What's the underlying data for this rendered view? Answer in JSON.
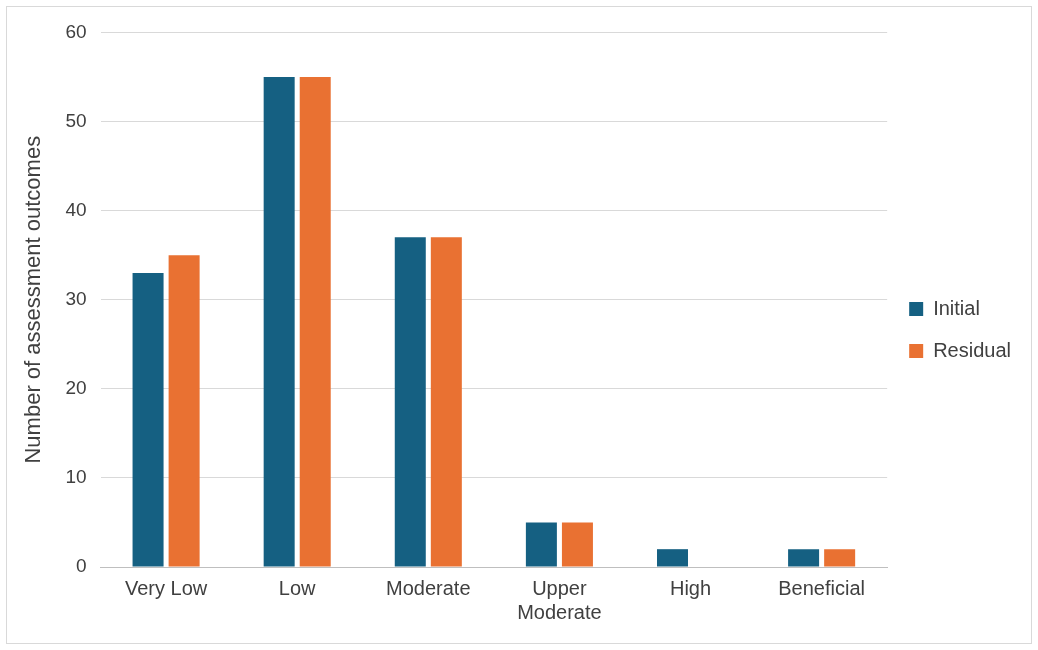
{
  "chart_data": {
    "type": "bar",
    "ylabel": "Number of assessment outcomes",
    "categories": [
      "Very Low",
      "Low",
      "Moderate",
      "Upper Moderate",
      "High",
      "Beneficial"
    ],
    "series": [
      {
        "name": "Initial",
        "color": "#156082",
        "values": [
          33,
          55,
          37,
          5,
          2,
          2
        ]
      },
      {
        "name": "Residual",
        "color": "#e97132",
        "values": [
          35,
          55,
          37,
          5,
          0,
          2
        ]
      }
    ],
    "ylim": [
      0,
      60
    ],
    "yticks": [
      0,
      10,
      20,
      30,
      40,
      50,
      60
    ],
    "grid": "y",
    "legend": "right"
  }
}
